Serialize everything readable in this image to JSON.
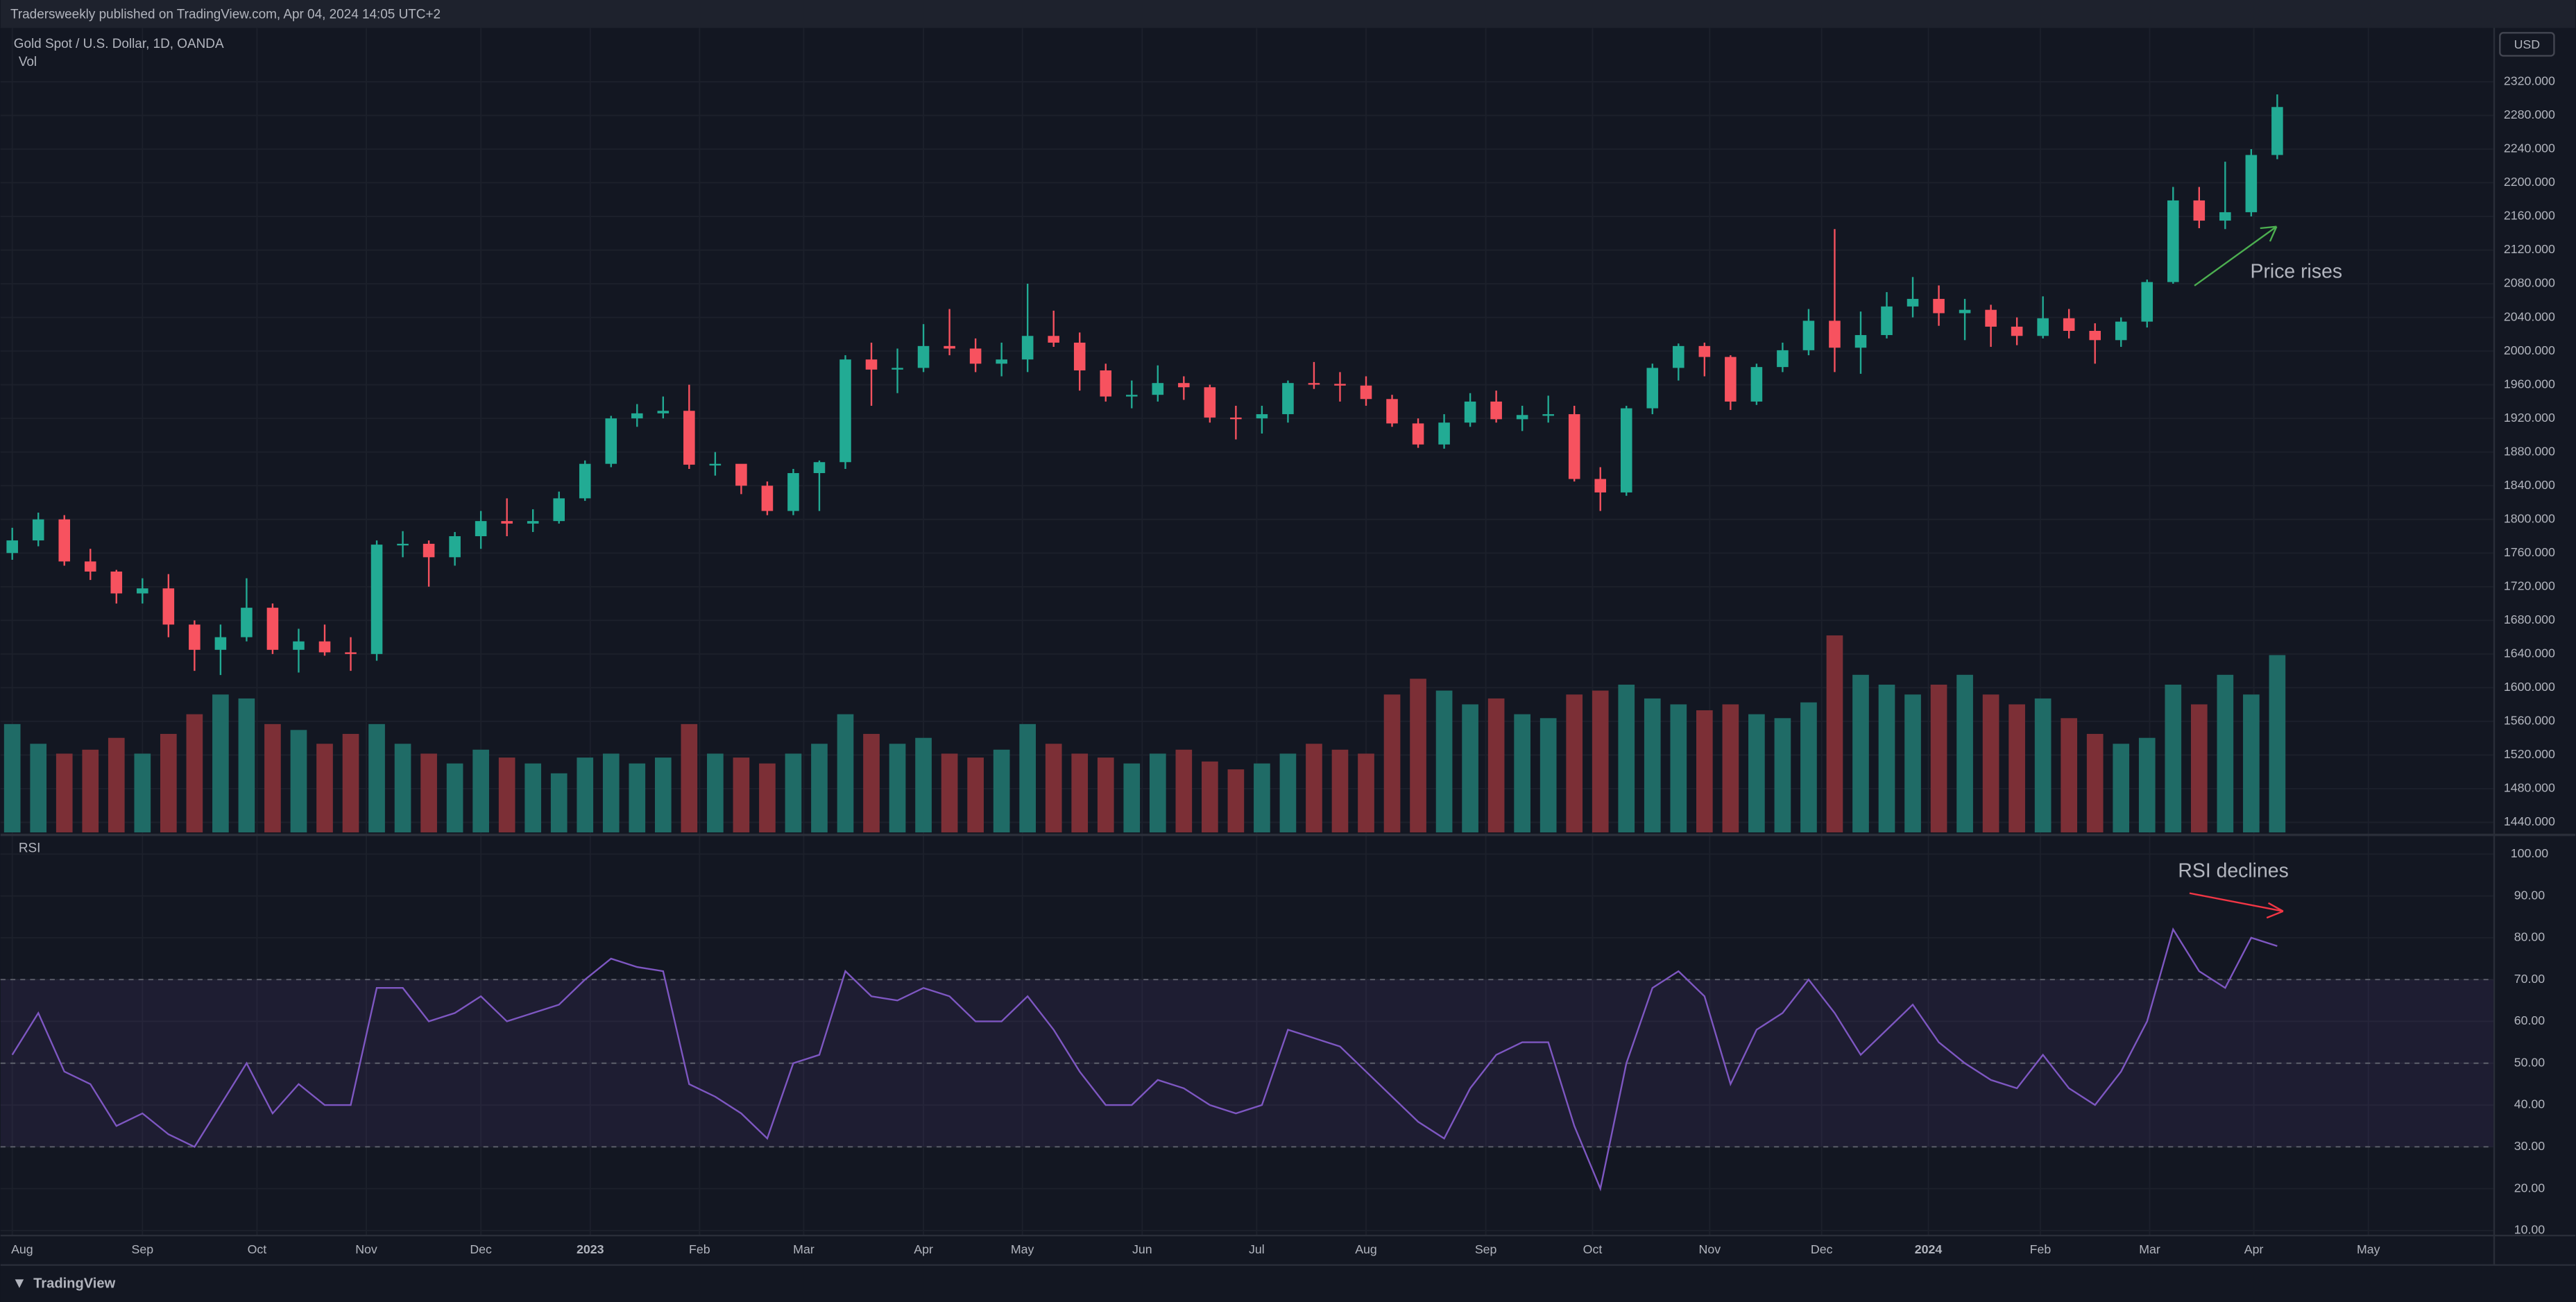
{
  "header": {
    "text": "Tradersweekly published on TradingView.com, Apr 04, 2024 14:05 UTC+2"
  },
  "footer": {
    "logo": "TradingView"
  },
  "chart_data": [
    {
      "type": "candlestick",
      "title": "Gold Spot / U.S. Dollar, 1D, OANDA",
      "volume_label": "Vol",
      "currency": "USD",
      "up_color": "#22ab94",
      "down_color": "#f7525f",
      "volume_up_color": "#1f6b66",
      "volume_down_color": "#7c2f36",
      "grid": true,
      "xlim": [
        -0.45,
        95.3
      ],
      "xticks": [
        {
          "value": 0,
          "label": "Aug"
        },
        {
          "value": 5,
          "label": "Sep"
        },
        {
          "value": 9.4,
          "label": "Oct"
        },
        {
          "value": 13.6,
          "label": "Nov"
        },
        {
          "value": 18,
          "label": "Dec"
        },
        {
          "value": 22.2,
          "label": "2023"
        },
        {
          "value": 26.4,
          "label": "Feb"
        },
        {
          "value": 30.4,
          "label": "Mar"
        },
        {
          "value": 35,
          "label": "Apr"
        },
        {
          "value": 38.8,
          "label": "May"
        },
        {
          "value": 43.4,
          "label": "Jun"
        },
        {
          "value": 47.8,
          "label": "Jul"
        },
        {
          "value": 52,
          "label": "Aug"
        },
        {
          "value": 56.6,
          "label": "Sep"
        },
        {
          "value": 60.7,
          "label": "Oct"
        },
        {
          "value": 65.2,
          "label": "Nov"
        },
        {
          "value": 69.5,
          "label": "Dec"
        },
        {
          "value": 73.6,
          "label": "2024"
        },
        {
          "value": 77.9,
          "label": "Feb"
        },
        {
          "value": 82.1,
          "label": "Mar"
        },
        {
          "value": 86.1,
          "label": "Apr"
        },
        {
          "value": 90.5,
          "label": "May"
        }
      ],
      "ylim": [
        1428,
        2384
      ],
      "yticks": [
        {
          "value": 1440,
          "label": "1440.000"
        },
        {
          "value": 1480,
          "label": "1480.000"
        },
        {
          "value": 1520,
          "label": "1520.000"
        },
        {
          "value": 1560,
          "label": "1560.000"
        },
        {
          "value": 1600,
          "label": "1600.000"
        },
        {
          "value": 1640,
          "label": "1640.000"
        },
        {
          "value": 1680,
          "label": "1680.000"
        },
        {
          "value": 1720,
          "label": "1720.000"
        },
        {
          "value": 1760,
          "label": "1760.000"
        },
        {
          "value": 1800,
          "label": "1800.000"
        },
        {
          "value": 1840,
          "label": "1840.000"
        },
        {
          "value": 1880,
          "label": "1880.000"
        },
        {
          "value": 1920,
          "label": "1920.000"
        },
        {
          "value": 1960,
          "label": "1960.000"
        },
        {
          "value": 2000,
          "label": "2000.000"
        },
        {
          "value": 2040,
          "label": "2040.000"
        },
        {
          "value": 2080,
          "label": "2080.000"
        },
        {
          "value": 2120,
          "label": "2120.000"
        },
        {
          "value": 2160,
          "label": "2160.000"
        },
        {
          "value": 2200,
          "label": "2200.000"
        },
        {
          "value": 2240,
          "label": "2240.000"
        },
        {
          "value": 2280,
          "label": "2280.000"
        },
        {
          "value": 2320,
          "label": "2320.000"
        }
      ],
      "open": [
        1760,
        1775,
        1800,
        1750,
        1738,
        1712,
        1718,
        1675,
        1645,
        1660,
        1695,
        1645,
        1655,
        1642,
        1640,
        1770,
        1771,
        1755,
        1780,
        1798,
        1795,
        1798,
        1825,
        1866,
        1920,
        1926,
        1929,
        1865,
        1866,
        1840,
        1810,
        1855,
        1868,
        1990,
        1978,
        1980,
        2006,
        2003,
        1985,
        1990,
        2018,
        2010,
        1977,
        1946,
        1948,
        1962,
        1957,
        1921,
        1920,
        1925,
        1962,
        1961,
        1959,
        1943,
        1914,
        1889,
        1915,
        1940,
        1919,
        1924,
        1925,
        1848,
        1832,
        1932,
        1980,
        2006,
        1993,
        1940,
        1981,
        2001,
        2036,
        2004,
        2019,
        2053,
        2062,
        2045,
        2049,
        2029,
        2018,
        2039,
        2024,
        2013,
        2035,
        2082,
        2179,
        2155,
        2165,
        2233
      ],
      "high": [
        1790,
        1808,
        1805,
        1765,
        1740,
        1730,
        1735,
        1680,
        1675,
        1730,
        1700,
        1670,
        1675,
        1660,
        1775,
        1786,
        1775,
        1785,
        1810,
        1825,
        1812,
        1833,
        1870,
        1923,
        1937,
        1946,
        1960,
        1880,
        1860,
        1845,
        1860,
        1870,
        1995,
        2010,
        2003,
        2032,
        2050,
        2015,
        2010,
        2080,
        2048,
        2022,
        1985,
        1965,
        1983,
        1970,
        1960,
        1935,
        1935,
        1965,
        1987,
        1975,
        1970,
        1948,
        1920,
        1925,
        1950,
        1953,
        1935,
        1947,
        1935,
        1862,
        1935,
        1985,
        2009,
        2010,
        1995,
        1985,
        2010,
        2050,
        2145,
        2047,
        2070,
        2088,
        2078,
        2062,
        2055,
        2040,
        2065,
        2050,
        2033,
        2040,
        2085,
        2195,
        2195,
        2225,
        2240,
        2305
      ],
      "low": [
        1752,
        1768,
        1745,
        1728,
        1700,
        1700,
        1660,
        1620,
        1615,
        1655,
        1640,
        1618,
        1638,
        1620,
        1632,
        1755,
        1720,
        1745,
        1765,
        1780,
        1785,
        1795,
        1822,
        1862,
        1910,
        1920,
        1860,
        1852,
        1830,
        1805,
        1805,
        1810,
        1860,
        1935,
        1950,
        1975,
        1995,
        1975,
        1970,
        1975,
        2005,
        1953,
        1940,
        1932,
        1940,
        1942,
        1915,
        1895,
        1902,
        1915,
        1955,
        1940,
        1935,
        1910,
        1885,
        1884,
        1910,
        1915,
        1905,
        1915,
        1845,
        1810,
        1828,
        1925,
        1965,
        1970,
        1930,
        1936,
        1975,
        1995,
        1975,
        1973,
        2015,
        2040,
        2030,
        2013,
        2005,
        2007,
        2015,
        2015,
        1985,
        2005,
        2028,
        2080,
        2146,
        2145,
        2160,
        2228
      ],
      "close": [
        1775,
        1800,
        1750,
        1738,
        1712,
        1718,
        1675,
        1645,
        1660,
        1695,
        1645,
        1655,
        1642,
        1640,
        1770,
        1771,
        1755,
        1780,
        1798,
        1795,
        1798,
        1825,
        1866,
        1920,
        1926,
        1929,
        1865,
        1866,
        1840,
        1810,
        1855,
        1868,
        1990,
        1978,
        1980,
        2006,
        2003,
        1985,
        1990,
        2018,
        2010,
        1977,
        1946,
        1948,
        1962,
        1957,
        1921,
        1920,
        1925,
        1962,
        1961,
        1959,
        1943,
        1914,
        1889,
        1915,
        1940,
        1919,
        1924,
        1925,
        1848,
        1832,
        1932,
        1980,
        2006,
        1993,
        1940,
        1981,
        2001,
        2036,
        2004,
        2019,
        2053,
        2062,
        2045,
        2049,
        2029,
        2018,
        2039,
        2024,
        2013,
        2035,
        2082,
        2179,
        2155,
        2165,
        2233,
        2290
      ],
      "volume": [
        55,
        45,
        40,
        42,
        48,
        40,
        50,
        60,
        70,
        68,
        55,
        52,
        45,
        50,
        55,
        45,
        40,
        35,
        42,
        38,
        35,
        30,
        38,
        40,
        35,
        38,
        55,
        40,
        38,
        35,
        40,
        45,
        60,
        50,
        45,
        48,
        40,
        38,
        42,
        55,
        45,
        40,
        38,
        35,
        40,
        42,
        36,
        32,
        35,
        40,
        45,
        42,
        40,
        70,
        78,
        72,
        65,
        68,
        60,
        58,
        70,
        72,
        75,
        68,
        65,
        62,
        65,
        60,
        58,
        66,
        100,
        80,
        75,
        70,
        75,
        80,
        70,
        65,
        68,
        58,
        50,
        45,
        48,
        75,
        65,
        80,
        70,
        90
      ],
      "annotations": [
        {
          "text": "Price rises",
          "color": "#4caf50"
        }
      ]
    },
    {
      "type": "line",
      "title": "RSI",
      "color": "#7e57c2",
      "band_color": "#7e57c2",
      "ylim": [
        9,
        104
      ],
      "yticks": [
        {
          "value": 10,
          "label": "10.00"
        },
        {
          "value": 20,
          "label": "20.00"
        },
        {
          "value": 30,
          "label": "30.00"
        },
        {
          "value": 40,
          "label": "40.00"
        },
        {
          "value": 50,
          "label": "50.00"
        },
        {
          "value": 60,
          "label": "60.00"
        },
        {
          "value": 70,
          "label": "70.00"
        },
        {
          "value": 80,
          "label": "80.00"
        },
        {
          "value": 90,
          "label": "90.00"
        },
        {
          "value": 100,
          "label": "100.00"
        }
      ],
      "levels": [
        70,
        50,
        30
      ],
      "values": [
        52,
        62,
        48,
        45,
        35,
        38,
        33,
        30,
        40,
        50,
        38,
        45,
        40,
        40,
        68,
        68,
        60,
        62,
        66,
        60,
        62,
        64,
        70,
        75,
        73,
        72,
        45,
        42,
        38,
        32,
        50,
        52,
        72,
        66,
        65,
        68,
        66,
        60,
        60,
        66,
        58,
        48,
        40,
        40,
        46,
        44,
        40,
        38,
        40,
        58,
        56,
        54,
        48,
        42,
        36,
        32,
        44,
        52,
        55,
        55,
        35,
        20,
        50,
        68,
        72,
        66,
        45,
        58,
        62,
        70,
        62,
        52,
        58,
        64,
        55,
        50,
        46,
        44,
        52,
        44,
        40,
        48,
        60,
        82,
        72,
        68,
        80,
        78
      ],
      "annotations": [
        {
          "text": "RSI declines",
          "color": "#f23645"
        }
      ]
    }
  ]
}
